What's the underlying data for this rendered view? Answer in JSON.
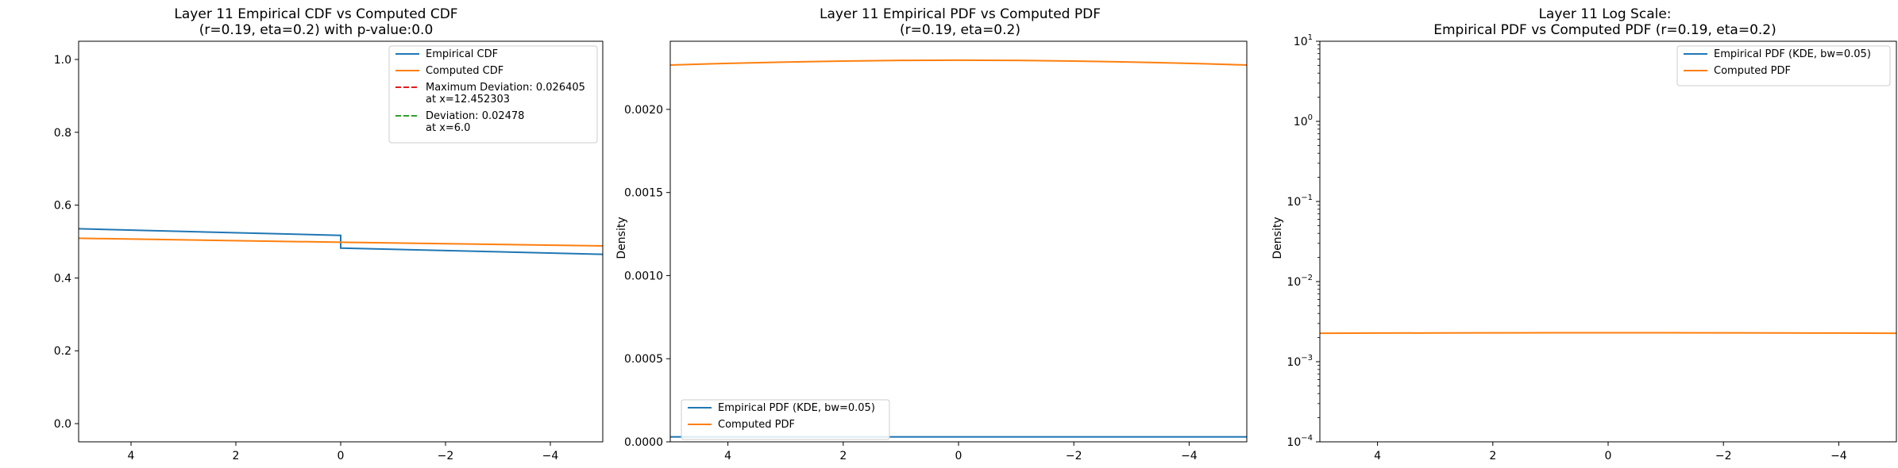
{
  "chart_data": [
    {
      "type": "line",
      "title": "Layer 11 Empirical CDF vs Computed CDF",
      "subtitle": "(r=0.19, eta=0.2) with p-value:0.0",
      "xlabel": "",
      "ylabel": "",
      "xlim": [
        5,
        -5
      ],
      "ylim": [
        -0.05,
        1.05
      ],
      "x_reversed": true,
      "y_scale": "linear",
      "xticks": [
        4,
        2,
        0,
        -2,
        -4
      ],
      "xtick_labels": [
        "4",
        "2",
        "0",
        "−2",
        "−4"
      ],
      "yticks": [
        0.0,
        0.2,
        0.4,
        0.6,
        0.8,
        1.0
      ],
      "ytick_labels": [
        "0.0",
        "0.2",
        "0.4",
        "0.6",
        "0.8",
        "1.0"
      ],
      "grid": false,
      "legend_position": "upper right",
      "series": [
        {
          "name": "Empirical CDF",
          "color": "#1f77b4",
          "style": "solid",
          "x": [
            5,
            0.0001,
            0,
            -5
          ],
          "y": [
            0.535,
            0.517,
            0.482,
            0.465
          ]
        },
        {
          "name": "Computed CDF",
          "color": "#ff7f0e",
          "style": "solid",
          "x": [
            5,
            0,
            -5
          ],
          "y": [
            0.509,
            0.498,
            0.488
          ]
        }
      ],
      "legend_entries": [
        {
          "lines": [
            "Empirical CDF"
          ],
          "color": "#1f77b4",
          "style": "solid"
        },
        {
          "lines": [
            "Computed CDF"
          ],
          "color": "#ff7f0e",
          "style": "solid"
        },
        {
          "lines": [
            "Maximum Deviation: 0.026405",
            "at x=12.452303"
          ],
          "color": "#e41a1c",
          "style": "dashed"
        },
        {
          "lines": [
            "Deviation: 0.02478",
            "at x=6.0"
          ],
          "color": "#2ca02c",
          "style": "dashed"
        }
      ]
    },
    {
      "type": "line",
      "title": "Layer 11 Empirical PDF vs Computed PDF",
      "subtitle": "(r=0.19, eta=0.2)",
      "xlabel": "",
      "ylabel": "Density",
      "xlim": [
        5,
        -5
      ],
      "ylim": [
        0,
        0.00241
      ],
      "x_reversed": true,
      "y_scale": "linear",
      "xticks": [
        4,
        2,
        0,
        -2,
        -4
      ],
      "xtick_labels": [
        "4",
        "2",
        "0",
        "−2",
        "−4"
      ],
      "yticks": [
        0,
        0.0005,
        0.001,
        0.0015,
        0.002
      ],
      "ytick_labels": [
        "0.0000",
        "0.0005",
        "0.0010",
        "0.0015",
        "0.0020"
      ],
      "grid": false,
      "legend_position": "lower left",
      "series": [
        {
          "name": "Empirical PDF (KDE, bw=0.05)",
          "color": "#1f77b4",
          "style": "solid",
          "x": [
            5,
            -5
          ],
          "y": [
            3e-05,
            3e-05
          ]
        },
        {
          "name": "Computed PDF",
          "color": "#ff7f0e",
          "style": "solid",
          "x": [
            5,
            4,
            3,
            2,
            1,
            0,
            -1,
            -2,
            -3,
            -4,
            -5
          ],
          "y": [
            0.002267,
            0.002277,
            0.002285,
            0.002291,
            0.002295,
            0.002296,
            0.002295,
            0.002291,
            0.002285,
            0.002277,
            0.002267
          ]
        }
      ],
      "legend_entries": [
        {
          "lines": [
            "Empirical PDF (KDE, bw=0.05)"
          ],
          "color": "#1f77b4",
          "style": "solid"
        },
        {
          "lines": [
            "Computed PDF"
          ],
          "color": "#ff7f0e",
          "style": "solid"
        }
      ]
    },
    {
      "type": "line",
      "title": "Layer 11 Log Scale:",
      "subtitle": "Empirical PDF vs Computed PDF (r=0.19, eta=0.2)",
      "xlabel": "",
      "ylabel": "Density",
      "xlim": [
        5,
        -5
      ],
      "ylim": [
        0.0001,
        10
      ],
      "x_reversed": true,
      "y_scale": "log",
      "xticks": [
        4,
        2,
        0,
        -2,
        -4
      ],
      "xtick_labels": [
        "4",
        "2",
        "0",
        "−2",
        "−4"
      ],
      "yticks": [
        0.0001,
        0.001,
        0.01,
        0.1,
        1,
        10
      ],
      "ytick_exponents": [
        "−4",
        "−3",
        "−2",
        "−1",
        "0",
        "1"
      ],
      "grid": false,
      "legend_position": "upper right",
      "series": [
        {
          "name": "Empirical PDF (KDE, bw=0.05)",
          "color": "#1f77b4",
          "style": "solid",
          "x": [],
          "y": []
        },
        {
          "name": "Computed PDF",
          "color": "#ff7f0e",
          "style": "solid",
          "x": [
            5,
            4,
            3,
            2,
            1,
            0,
            -1,
            -2,
            -3,
            -4,
            -5
          ],
          "y": [
            0.002267,
            0.002277,
            0.002285,
            0.002291,
            0.002295,
            0.002296,
            0.002295,
            0.002291,
            0.002285,
            0.002277,
            0.002267
          ]
        }
      ],
      "legend_entries": [
        {
          "lines": [
            "Empirical PDF (KDE, bw=0.05)"
          ],
          "color": "#1f77b4",
          "style": "solid"
        },
        {
          "lines": [
            "Computed PDF"
          ],
          "color": "#ff7f0e",
          "style": "solid"
        }
      ]
    }
  ]
}
